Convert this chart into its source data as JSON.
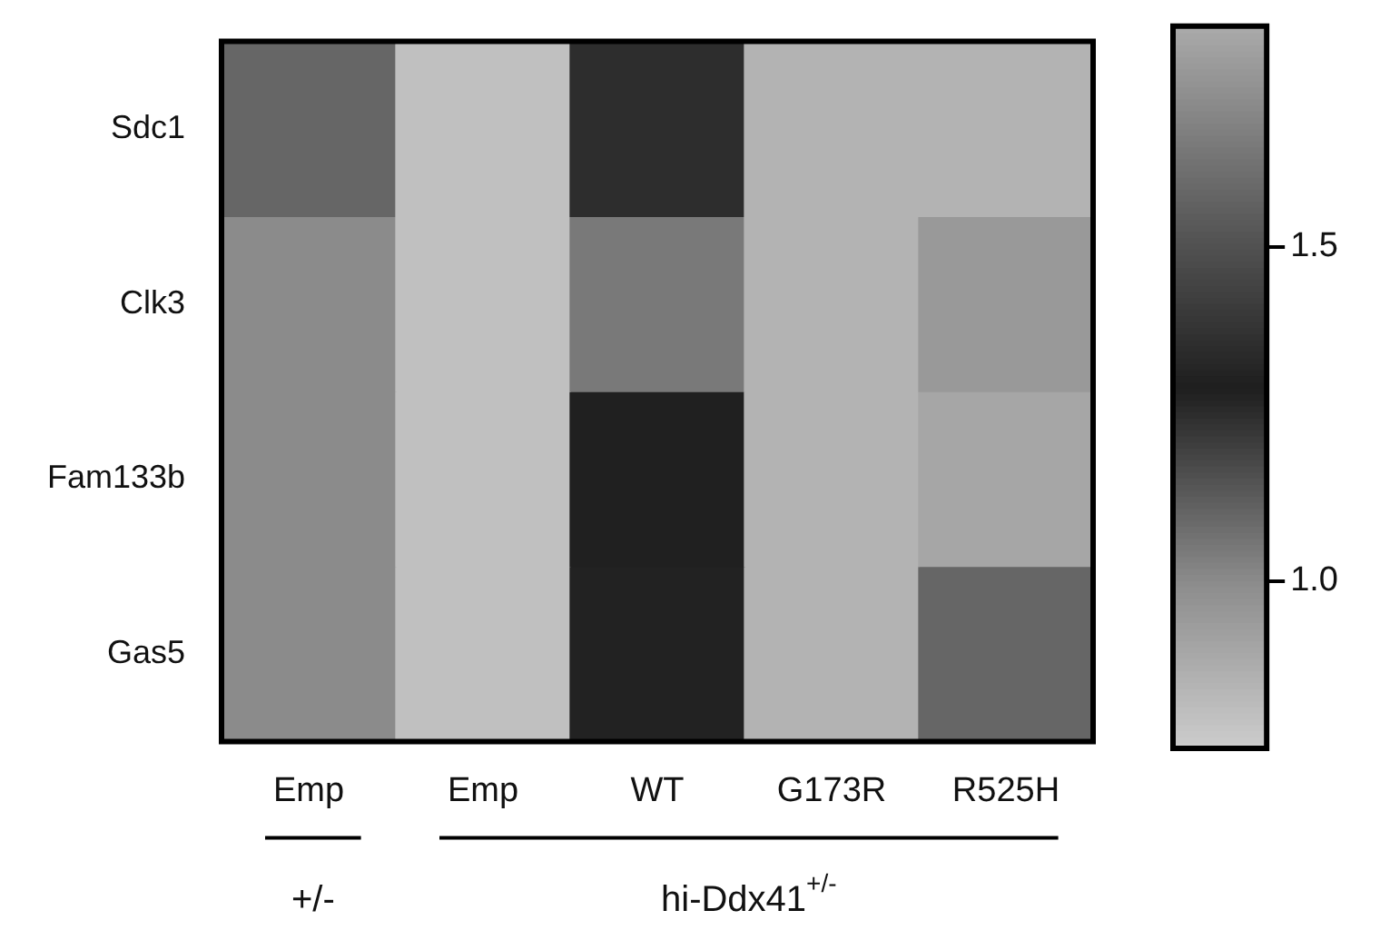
{
  "chart_data": {
    "type": "heatmap",
    "categories": [
      "Emp",
      "Emp",
      "WT",
      "G173R",
      "R525H"
    ],
    "y_categories": [
      "Sdc1",
      "Clk3",
      "Fam133b",
      "Gas5"
    ],
    "cells": [
      [
        1.1,
        0.8,
        1.25,
        0.85,
        0.85
      ],
      [
        1.0,
        0.8,
        1.05,
        0.85,
        0.95
      ],
      [
        1.0,
        0.8,
        1.3,
        0.85,
        0.9
      ],
      [
        1.0,
        0.8,
        1.28,
        0.85,
        1.1
      ]
    ],
    "clim": [
      0.75,
      1.83
    ],
    "cticks": [
      {
        "value": 1,
        "label": "1.0"
      },
      1.5
    ],
    "annotations": [
      "+/-",
      "hi-Ddx41$^{+/-}$"
    ]
  }
}
